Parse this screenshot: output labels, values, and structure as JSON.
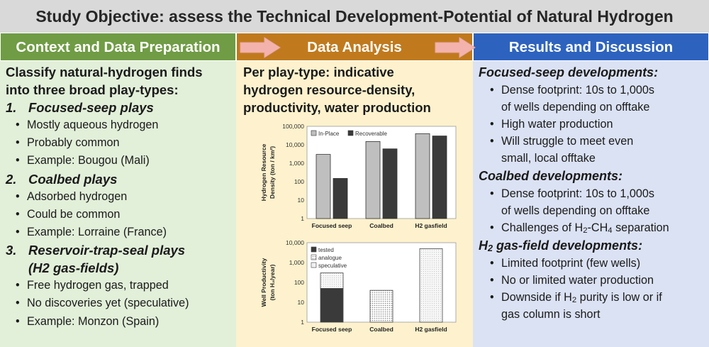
{
  "title": "Study Objective: assess the Technical Development-Potential of Natural Hydrogen",
  "headers": {
    "context": "Context and Data Preparation",
    "analysis": "Data Analysis",
    "results": "Results and Discussion"
  },
  "context": {
    "intro_line1": "Classify natural-hydrogen finds",
    "intro_line2": "into three broad play-types:",
    "plays": [
      {
        "num": "1.",
        "name": "Focused-seep plays",
        "name2": "",
        "bullets": [
          "Mostly aqueous hydrogen",
          "Probably common",
          "Example: Bougou (Mali)"
        ]
      },
      {
        "num": "2.",
        "name": "Coalbed plays",
        "name2": "",
        "bullets": [
          "Adsorbed hydrogen",
          "Could be common",
          "Example: Lorraine (France)"
        ]
      },
      {
        "num": "3.",
        "name": "Reservoir-trap-seal plays",
        "name2": "(H2 gas-fields)",
        "bullets": [
          "Free hydrogen gas, trapped",
          "No discoveries yet (speculative)",
          "Example: Monzon (Spain)"
        ]
      }
    ]
  },
  "analysis": {
    "line1": "Per play-type: indicative",
    "line2": "hydrogen resource-density,",
    "line3": "productivity, water production"
  },
  "results": {
    "sec1": "Focused-seep developments:",
    "sec1_b1a": "Dense footprint: 10s to 1,000s",
    "sec1_b1b": "of wells depending on offtake",
    "sec1_b2": "High water production",
    "sec1_b3a": "Will struggle to meet even",
    "sec1_b3b": "small, local offtake",
    "sec2": "Coalbed developments:",
    "sec2_b1a": "Dense footprint: 10s to 1,000s",
    "sec2_b1b": "of wells depending on offtake",
    "sec2_b2_pre": "Challenges of H",
    "sec2_b2_sub1": "2",
    "sec2_b2_mid": "-CH",
    "sec2_b2_sub2": "4",
    "sec2_b2_post": " separation",
    "sec3_pre": "H",
    "sec3_sub": "2",
    "sec3_post": " gas-field developments:",
    "sec3_b1": "Limited footprint (few wells)",
    "sec3_b2": "No or limited water production",
    "sec3_b3_pre": "Downside if H",
    "sec3_b3_sub": "2",
    "sec3_b3_post": " purity is low or if",
    "sec3_b3b": "gas column is short"
  },
  "chart_data": [
    {
      "type": "bar",
      "categories": [
        "Focused seep",
        "Coalbed",
        "H2 gasfield"
      ],
      "ylabel_line1": "Hydrogen Resource",
      "ylabel_line2": "Density (ton / km²)",
      "yscale": "log",
      "ylim": [
        1,
        100000
      ],
      "yticks": [
        "1",
        "10",
        "100",
        "1,000",
        "10,000",
        "100,000"
      ],
      "legend_position": "top-left",
      "series": [
        {
          "name": "In-Place",
          "values": [
            3000,
            15000,
            40000
          ],
          "color": "#bfbfbf"
        },
        {
          "name": "Recoverable",
          "values": [
            150,
            6000,
            30000
          ],
          "color": "#3a3a3a"
        }
      ]
    },
    {
      "type": "bar",
      "categories": [
        "Focused seep",
        "Coalbed",
        "H2 gasfield"
      ],
      "ylabel_line1": "Well Productivity",
      "ylabel_line2": "(ton H₂/year)",
      "yscale": "log",
      "ylim": [
        1,
        10000
      ],
      "yticks": [
        "1",
        "10",
        "100",
        "1,000",
        "10,000"
      ],
      "legend_position": "top-left",
      "legend": [
        "tested",
        "analogue",
        "speculative"
      ],
      "bars": [
        {
          "category": "Focused seep",
          "segments": [
            {
              "kind": "tested",
              "from": 1,
              "to": 50
            },
            {
              "kind": "speculative",
              "from": 50,
              "to": 300
            }
          ]
        },
        {
          "category": "Coalbed",
          "segments": [
            {
              "kind": "analogue",
              "from": 1,
              "to": 40
            }
          ]
        },
        {
          "category": "H2 gasfield",
          "segments": [
            {
              "kind": "speculative",
              "from": 1,
              "to": 5000
            }
          ]
        }
      ]
    }
  ],
  "colors": {
    "title_bg": "#d9d9d9",
    "context": "#6f9c44",
    "analysis": "#c07a1d",
    "results": "#2d63bf",
    "arrow": "#f4b2ad"
  }
}
